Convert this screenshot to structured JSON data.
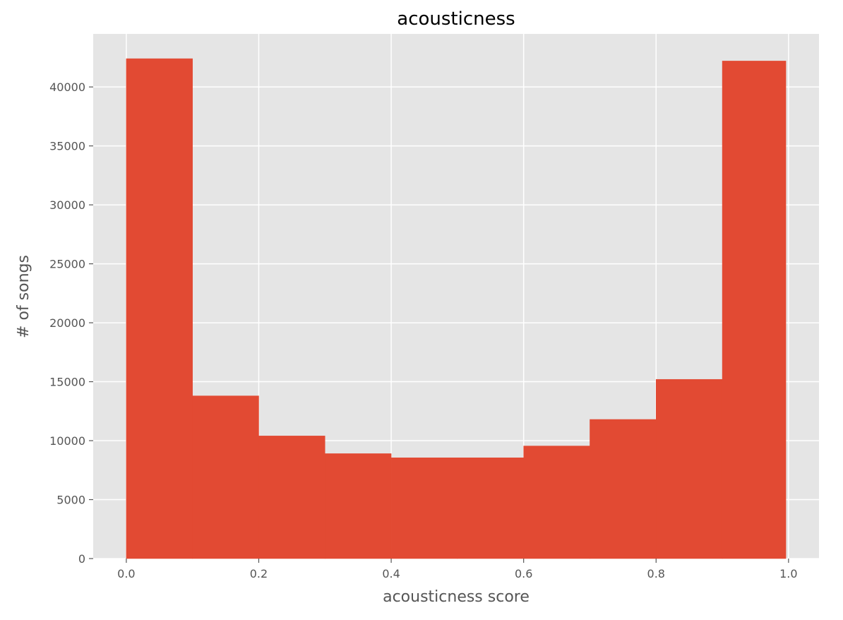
{
  "chart_data": {
    "type": "bar",
    "title": "acousticness",
    "xlabel": "acousticness score",
    "ylabel": "# of songs",
    "bins": [
      {
        "x0": 0.0,
        "x1": 0.1,
        "count": 42400
      },
      {
        "x0": 0.1,
        "x1": 0.2,
        "count": 13800
      },
      {
        "x0": 0.2,
        "x1": 0.3,
        "count": 10400
      },
      {
        "x0": 0.3,
        "x1": 0.4,
        "count": 8900
      },
      {
        "x0": 0.4,
        "x1": 0.5,
        "count": 8550
      },
      {
        "x0": 0.5,
        "x1": 0.6,
        "count": 8550
      },
      {
        "x0": 0.6,
        "x1": 0.7,
        "count": 9550
      },
      {
        "x0": 0.7,
        "x1": 0.8,
        "count": 11800
      },
      {
        "x0": 0.8,
        "x1": 0.9,
        "count": 15200
      },
      {
        "x0": 0.9,
        "x1": 0.996,
        "count": 42200
      }
    ],
    "xlim": [
      -0.05,
      1.046
    ],
    "ylim": [
      0,
      44500
    ],
    "xticks": [
      0.0,
      0.2,
      0.4,
      0.6,
      0.8,
      1.0
    ],
    "xtick_labels": [
      "0.0",
      "0.2",
      "0.4",
      "0.6",
      "0.8",
      "1.0"
    ],
    "yticks": [
      0,
      5000,
      10000,
      15000,
      20000,
      25000,
      30000,
      35000,
      40000
    ],
    "ytick_labels": [
      "0",
      "5000",
      "10000",
      "15000",
      "20000",
      "25000",
      "30000",
      "35000",
      "40000"
    ],
    "grid": true,
    "colors": {
      "bar": "#e24a33",
      "plot_background": "#e5e5e5",
      "grid": "#ffffff",
      "text": "#555555"
    }
  }
}
